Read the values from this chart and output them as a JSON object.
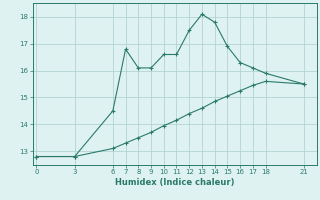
{
  "xlabel": "Humidex (Indice chaleur)",
  "line1_x": [
    0,
    3,
    6,
    7,
    8,
    9,
    10,
    11,
    12,
    13,
    14,
    15,
    16,
    17,
    18,
    21
  ],
  "line1_y": [
    12.8,
    12.8,
    14.5,
    16.8,
    16.1,
    16.1,
    16.6,
    16.6,
    17.5,
    18.1,
    17.8,
    16.9,
    16.3,
    16.1,
    15.9,
    15.5
  ],
  "line2_x": [
    0,
    3,
    6,
    7,
    8,
    9,
    10,
    11,
    12,
    13,
    14,
    15,
    16,
    17,
    18,
    21
  ],
  "line2_y": [
    12.8,
    12.8,
    13.1,
    13.3,
    13.5,
    13.7,
    13.95,
    14.15,
    14.4,
    14.6,
    14.85,
    15.05,
    15.25,
    15.45,
    15.6,
    15.5
  ],
  "line_color": "#2a7a6a",
  "bg_color": "#dff2f2",
  "grid_color": "#aacece",
  "ylim": [
    12.5,
    18.5
  ],
  "xlim": [
    -0.3,
    22
  ],
  "xticks": [
    0,
    3,
    6,
    7,
    8,
    9,
    10,
    11,
    12,
    13,
    14,
    15,
    16,
    17,
    18,
    21
  ],
  "yticks": [
    13,
    14,
    15,
    16,
    17,
    18
  ]
}
